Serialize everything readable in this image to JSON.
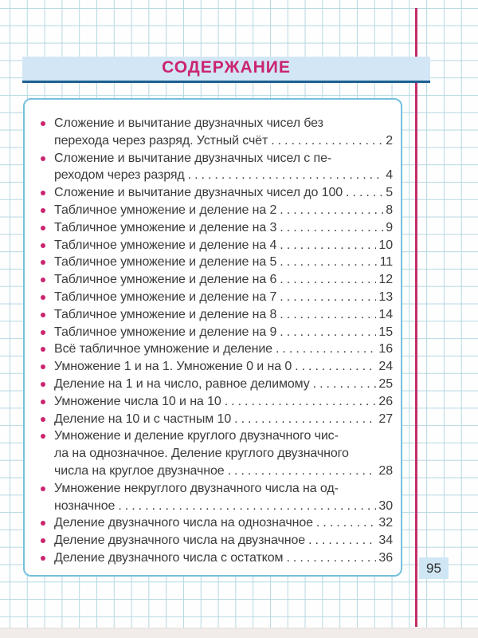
{
  "page": {
    "title": "СОДЕРЖАНИЕ",
    "page_number": "95"
  },
  "theme": {
    "accent": "#cb2470",
    "margin-line": "#c12f68",
    "bar-fill": "#d2e6f6",
    "bar-underline": "#1c5f93",
    "box-border": "#76c0de",
    "badge-fill": "#cfe6f5",
    "grid-line": "#b5d8e2",
    "text": "#3b3b3b"
  },
  "toc": {
    "items": [
      {
        "lines": [
          "Сложение и вычитание двузначных чисел без",
          "перехода через разряд. Устный счёт"
        ],
        "page": "2"
      },
      {
        "lines": [
          "Сложение и вычитание двузначных чисел с пе-",
          "реходом через разряд"
        ],
        "page": "4"
      },
      {
        "lines": [
          "Сложение и вычитание двузначных чисел до 100"
        ],
        "page": "5"
      },
      {
        "lines": [
          "Табличное умножение и деление на 2"
        ],
        "page": "8"
      },
      {
        "lines": [
          "Табличное умножение и деление на 3"
        ],
        "page": "9"
      },
      {
        "lines": [
          "Табличное умножение и деление на 4"
        ],
        "page": "10"
      },
      {
        "lines": [
          "Табличное умножение и деление на 5"
        ],
        "page": "11"
      },
      {
        "lines": [
          "Табличное умножение и деление на 6"
        ],
        "page": "12"
      },
      {
        "lines": [
          "Табличное умножение и деление на 7"
        ],
        "page": "13"
      },
      {
        "lines": [
          "Табличное умножение и деление на 8"
        ],
        "page": "14"
      },
      {
        "lines": [
          "Табличное умножение и деление на 9"
        ],
        "page": "15"
      },
      {
        "lines": [
          "Всё табличное умножение и деление"
        ],
        "page": "16"
      },
      {
        "lines": [
          "Умножение 1 и на 1. Умножение 0 и на 0"
        ],
        "page": "24"
      },
      {
        "lines": [
          "Деление на 1 и на число, равное делимому"
        ],
        "page": "25"
      },
      {
        "lines": [
          "Умножение числа 10 и на 10"
        ],
        "page": "26"
      },
      {
        "lines": [
          "Деление на 10 и с частным 10"
        ],
        "page": "27"
      },
      {
        "lines": [
          "Умножение и деление круглого двузначного чис-",
          "ла на однозначное. Деление круглого двузначного",
          "числа на круглое двузначное"
        ],
        "page": "28"
      },
      {
        "lines": [
          "Умножение некруглого двузначного числа на од-",
          "нозначное"
        ],
        "page": "30"
      },
      {
        "lines": [
          "Деление двузначного числа на однозначное"
        ],
        "page": "32"
      },
      {
        "lines": [
          "Деление двузначного числа на двузначное"
        ],
        "page": "34"
      },
      {
        "lines": [
          "Деление двузначного числа с остатком"
        ],
        "page": "36"
      }
    ]
  }
}
